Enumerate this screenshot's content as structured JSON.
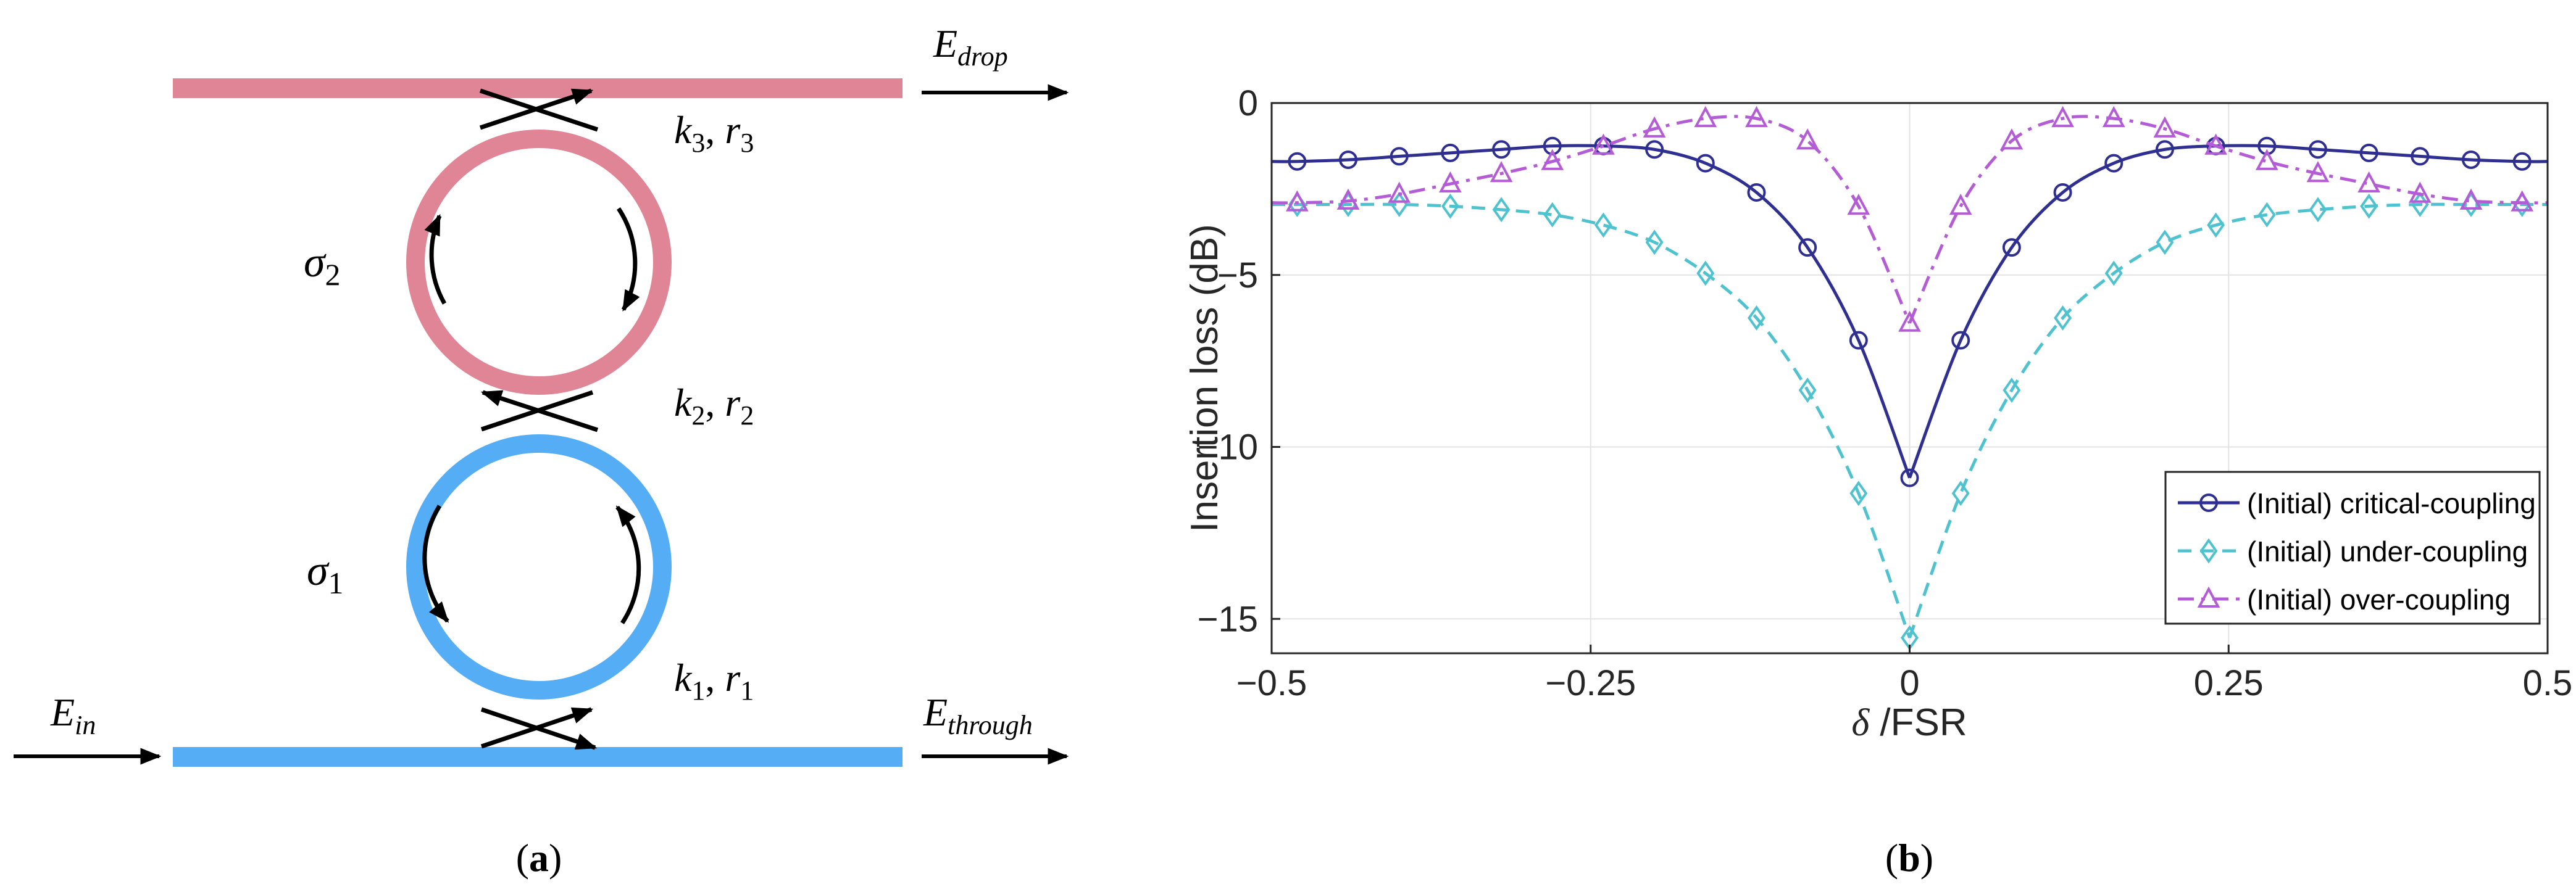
{
  "panel_a": {
    "caption": {
      "open": "(",
      "letter": "a",
      "close": ")"
    },
    "labels": {
      "e_drop": {
        "main": "E",
        "sub": "drop"
      },
      "e_in": {
        "main": "E",
        "sub": "in"
      },
      "e_through": {
        "main": "E",
        "sub": "through"
      },
      "sigma2": {
        "main": "σ",
        "sub": "2"
      },
      "sigma1": {
        "main": "σ",
        "sub": "1"
      },
      "k3r3": {
        "k": "k",
        "ks": "3",
        "sep": ", ",
        "r": "r",
        "rs": "3"
      },
      "k2r2": {
        "k": "k",
        "ks": "2",
        "sep": ", ",
        "r": "r",
        "rs": "2"
      },
      "k1r1": {
        "k": "k",
        "ks": "1",
        "sep": ", ",
        "r": "r",
        "rs": "1"
      }
    },
    "colors": {
      "top_bus": "#e08596",
      "bottom_bus": "#55aef5",
      "ring2": "#e08596",
      "ring1": "#55aef5",
      "arrow": "#000000"
    }
  },
  "panel_b": {
    "caption": {
      "open": "(",
      "letter": "b",
      "close": ")"
    }
  },
  "chart_data": {
    "type": "line",
    "title": "",
    "xlabel": {
      "symbol": "δ",
      "text": " /FSR"
    },
    "ylabel": "Insertion loss (dB)",
    "xlim": [
      -0.5,
      0.5
    ],
    "ylim": [
      -16,
      0
    ],
    "grid": true,
    "legend_position": "bottom-right",
    "x_ticks": [
      {
        "value": -0.5,
        "label": "−0.5"
      },
      {
        "value": -0.25,
        "label": "−0.25"
      },
      {
        "value": 0,
        "label": "0"
      },
      {
        "value": 0.25,
        "label": "0.25"
      },
      {
        "value": 0.5,
        "label": "0.5"
      }
    ],
    "y_ticks": [
      {
        "value": 0,
        "label": "0"
      },
      {
        "value": -5,
        "label": "−5"
      },
      {
        "value": -10,
        "label": "−10"
      },
      {
        "value": -15,
        "label": "−15"
      }
    ],
    "x": [
      -0.48,
      -0.44,
      -0.4,
      -0.36,
      -0.32,
      -0.28,
      -0.24,
      -0.2,
      -0.16,
      -0.12,
      -0.08,
      -0.04,
      0,
      0.04,
      0.08,
      0.12,
      0.16,
      0.2,
      0.24,
      0.28,
      0.32,
      0.36,
      0.4,
      0.44,
      0.48
    ],
    "series": [
      {
        "name": "(Initial) critical-coupling",
        "color": "#2e2f91",
        "dash": "solid",
        "marker": "circle",
        "values": [
          -1.7,
          -1.65,
          -1.55,
          -1.45,
          -1.35,
          -1.25,
          -1.25,
          -1.35,
          -1.75,
          -2.6,
          -4.2,
          -6.9,
          -10.9,
          -6.9,
          -4.2,
          -2.6,
          -1.75,
          -1.35,
          -1.25,
          -1.25,
          -1.35,
          -1.45,
          -1.55,
          -1.65,
          -1.7
        ]
      },
      {
        "name": "(Initial) under-coupling",
        "color": "#4ec3cf",
        "dash": "dashed",
        "marker": "diamond",
        "values": [
          -2.95,
          -2.95,
          -2.95,
          -3.0,
          -3.1,
          -3.25,
          -3.55,
          -4.05,
          -4.95,
          -6.25,
          -8.35,
          -11.35,
          -15.55,
          -11.35,
          -8.35,
          -6.25,
          -4.95,
          -4.05,
          -3.55,
          -3.25,
          -3.1,
          -3.0,
          -2.95,
          -2.95,
          -2.95
        ]
      },
      {
        "name": "(Initial) over-coupling",
        "color": "#b45cd6",
        "dash": "dashdot",
        "marker": "triangle",
        "values": [
          -2.9,
          -2.85,
          -2.65,
          -2.35,
          -2.05,
          -1.7,
          -1.25,
          -0.75,
          -0.45,
          -0.45,
          -1.1,
          -3.0,
          -6.4,
          -3.0,
          -1.1,
          -0.45,
          -0.45,
          -0.75,
          -1.25,
          -1.7,
          -2.05,
          -2.35,
          -2.65,
          -2.85,
          -2.9
        ]
      }
    ]
  }
}
